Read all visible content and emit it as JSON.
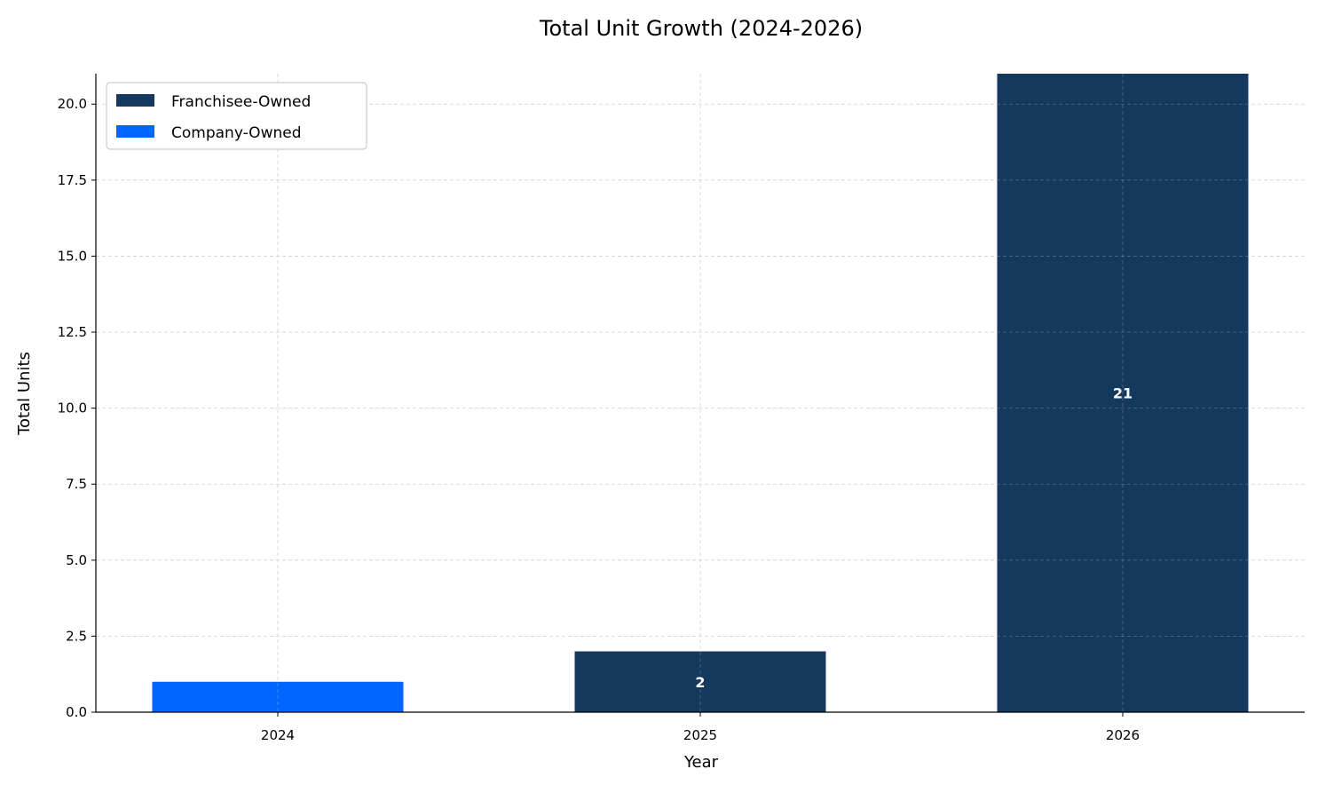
{
  "chart_data": {
    "type": "bar",
    "stacked": true,
    "title": "Total Unit Growth (2024-2026)",
    "xlabel": "Year",
    "ylabel": "Total Units",
    "categories": [
      "2024",
      "2025",
      "2026"
    ],
    "series": [
      {
        "name": "Franchisee-Owned",
        "color": "#15385f",
        "values": [
          0,
          2,
          21
        ]
      },
      {
        "name": "Company-Owned",
        "color": "#0066ff",
        "values": [
          1,
          0,
          0
        ]
      }
    ],
    "data_labels": [
      "",
      "2",
      "21"
    ],
    "ylim": [
      0,
      21
    ],
    "yticks": [
      "0.0",
      "2.5",
      "5.0",
      "7.5",
      "10.0",
      "12.5",
      "15.0",
      "17.5",
      "20.0"
    ],
    "ytick_values": [
      0,
      2.5,
      5,
      7.5,
      10,
      12.5,
      15,
      17.5,
      20
    ],
    "grid": true,
    "legend_position": "top-left"
  }
}
